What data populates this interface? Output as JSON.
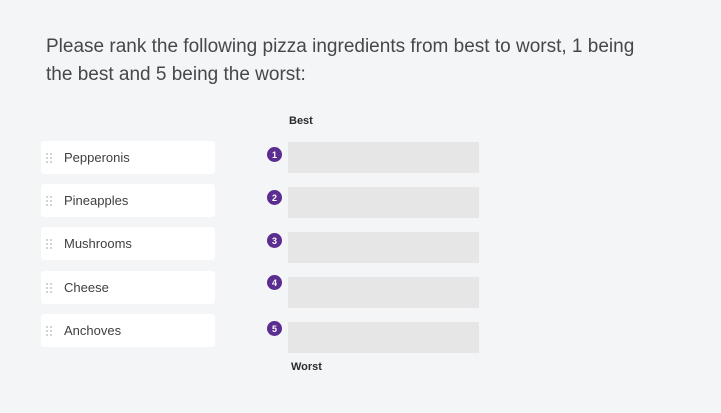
{
  "question": {
    "text": "Please rank the following pizza ingredients from best to worst, 1 being the best and 5 being the worst:"
  },
  "ranking": {
    "best_label": "Best",
    "worst_label": "Worst",
    "items": [
      {
        "label": "Pepperonis"
      },
      {
        "label": "Pineapples"
      },
      {
        "label": "Mushrooms"
      },
      {
        "label": "Cheese"
      },
      {
        "label": "Anchoves"
      }
    ],
    "slots": [
      {
        "rank": "1"
      },
      {
        "rank": "2"
      },
      {
        "rank": "3"
      },
      {
        "rank": "4"
      },
      {
        "rank": "5"
      }
    ]
  },
  "colors": {
    "background": "#f4f5f7",
    "badge": "#5b2d90",
    "slot": "#e6e6e7",
    "item": "#ffffff"
  },
  "icons": {
    "item_handle": "drag-handle-icon"
  }
}
